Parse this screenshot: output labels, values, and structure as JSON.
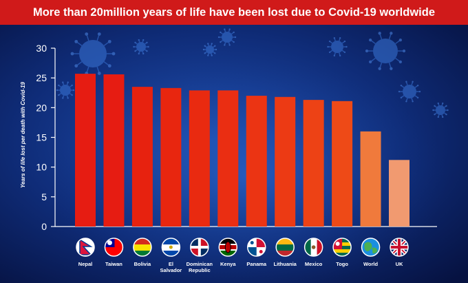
{
  "title": "More than 20million years of life have been lost due to Covid-19 worldwide",
  "chart_data": {
    "type": "bar",
    "categories": [
      "Nepal",
      "Taiwan",
      "Bolivia",
      "El Salvador",
      "Dominican Republic",
      "Kenya",
      "Panama",
      "Lithuania",
      "Mexico",
      "Togo",
      "World",
      "UK"
    ],
    "category_lines": [
      [
        "Nepal"
      ],
      [
        "Taiwan"
      ],
      [
        "Bolivia"
      ],
      [
        "El",
        "Salvador"
      ],
      [
        "Dominican",
        "Republic"
      ],
      [
        "Kenya"
      ],
      [
        "Panama"
      ],
      [
        "Lithuania"
      ],
      [
        "Mexico"
      ],
      [
        "Togo"
      ],
      [
        "World"
      ],
      [
        "UK"
      ]
    ],
    "values": [
      25.7,
      25.6,
      23.5,
      23.3,
      22.9,
      22.9,
      22.0,
      21.8,
      21.3,
      21.1,
      16.0,
      11.2
    ],
    "ylabel": "Years of life lost per death with Covid-19",
    "xlabel": "",
    "ylim": [
      0,
      30
    ],
    "yticks": [
      0,
      5,
      10,
      15,
      20,
      25,
      30
    ],
    "grid": false,
    "bar_colors": [
      "#e61c12",
      "#e61c12",
      "#e7220f",
      "#e8260f",
      "#e92a10",
      "#ea2e12",
      "#eb3413",
      "#ec3a14",
      "#ed4215",
      "#ee4a17",
      "#f07a3c",
      "#f19a70"
    ],
    "flags": [
      "nepal-flag-icon",
      "taiwan-flag-icon",
      "bolivia-flag-icon",
      "el-salvador-flag-icon",
      "dominican-republic-flag-icon",
      "kenya-flag-icon",
      "panama-flag-icon",
      "lithuania-flag-icon",
      "mexico-flag-icon",
      "togo-flag-icon",
      "world-globe-icon",
      "uk-flag-icon"
    ]
  }
}
